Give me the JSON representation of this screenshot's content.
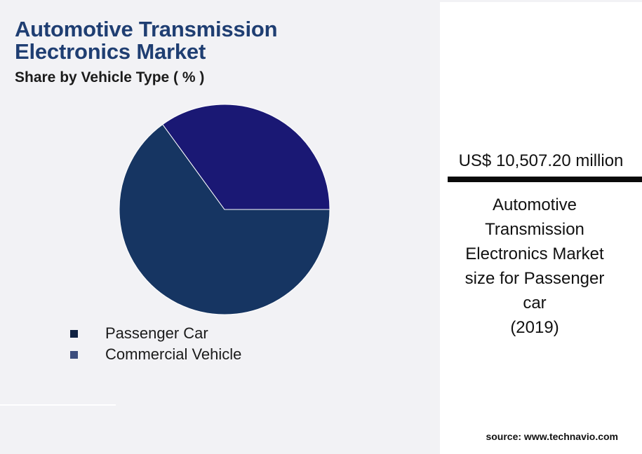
{
  "chart_data": {
    "type": "pie",
    "title": "Automotive Transmission Electronics Market",
    "subtitle": "Share by Vehicle Type ( % )",
    "categories": [
      "Passenger Car",
      "Commercial Vehicle"
    ],
    "values": [
      65,
      35
    ],
    "colors": [
      "#163562",
      "#1a1874"
    ],
    "legend_colors": [
      "#0f2141",
      "#3c4d7d"
    ],
    "legend_position": "bottom-left"
  },
  "kpi": {
    "value": "US$ 10,507.20 million",
    "caption_lines": [
      "Automotive",
      "Transmission",
      "Electronics Market",
      "size for Passenger",
      "car",
      "(2019)"
    ]
  },
  "source": "source: www.technavio.com"
}
